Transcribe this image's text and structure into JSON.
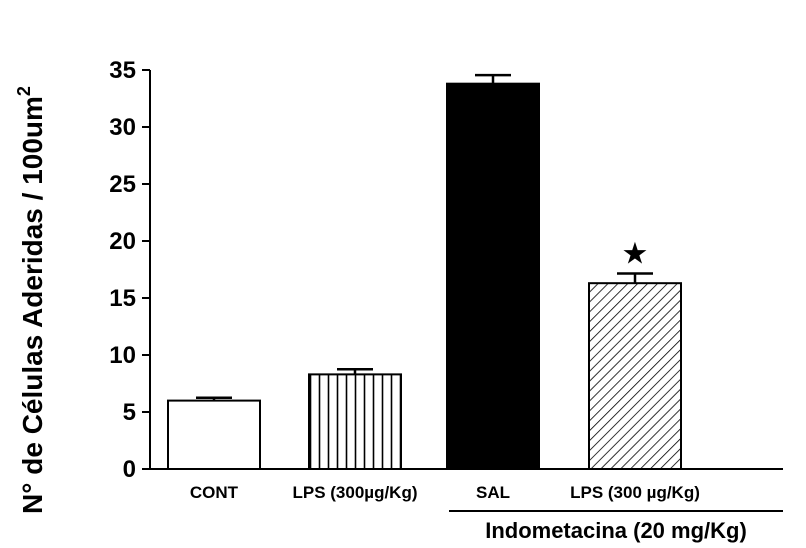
{
  "chart_data": {
    "type": "bar",
    "ylabel_main": "N° de Células Aderidas / 100um",
    "ylabel_sup": "2",
    "xlabel": "",
    "ylim": [
      0,
      35
    ],
    "yticks": [
      0,
      5,
      10,
      15,
      20,
      25,
      30,
      35
    ],
    "categories": [
      "CONT",
      "LPS (300µg/Kg)",
      "SAL",
      "LPS (300 µg/Kg)"
    ],
    "values": [
      6.0,
      8.3,
      33.8,
      16.3
    ],
    "errors": [
      0.25,
      0.45,
      0.75,
      0.85
    ],
    "fills": [
      "white",
      "vertical-stripes",
      "black",
      "diagonal-hatch"
    ],
    "significance_marker": "★",
    "significance_index": 3,
    "group_label": "Indometacina (20 mg/Kg)",
    "group_indices": [
      2,
      3
    ],
    "grid": false,
    "legend": false
  }
}
